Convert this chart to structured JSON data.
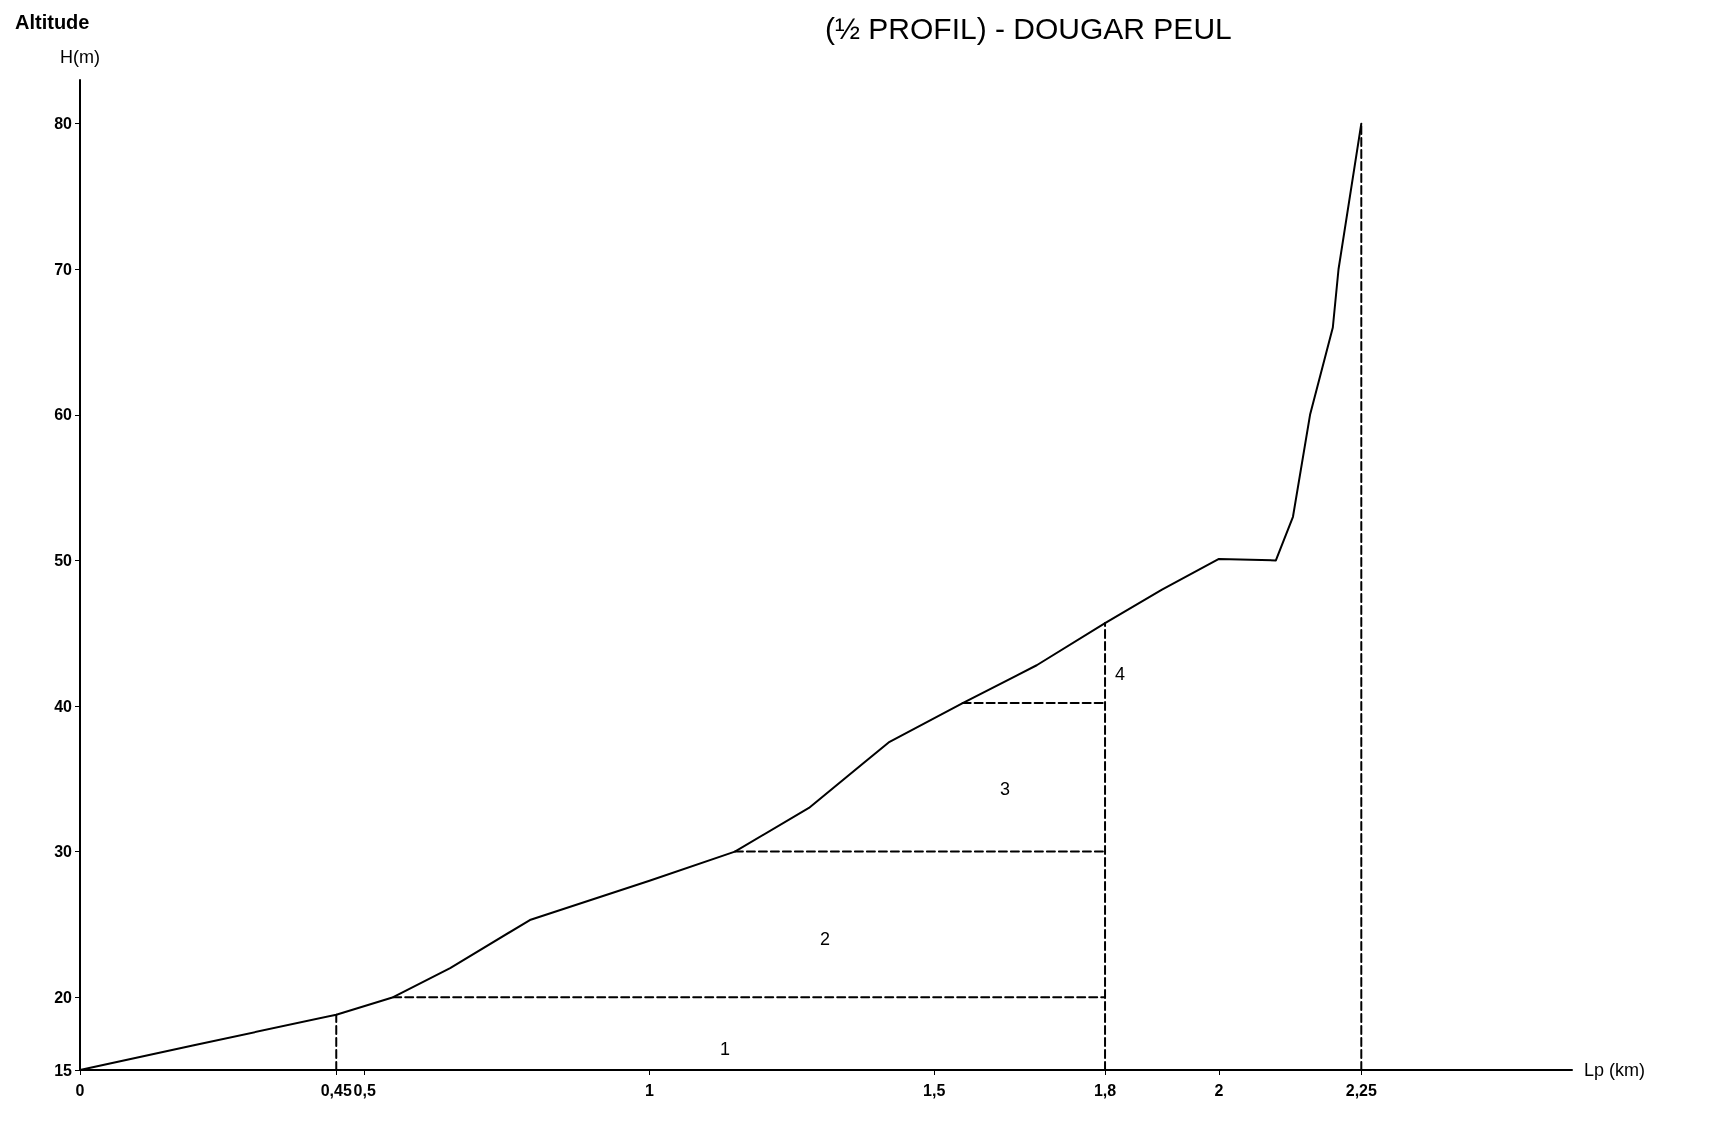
{
  "chart_data": {
    "type": "line",
    "title": "(½ PROFIL) - DOUGAR PEUL",
    "xlabel": "Lp (km)",
    "ylabel": "H(m)",
    "annotations": [
      "Altitude",
      "1",
      "2",
      "3",
      "4"
    ],
    "xlim": [
      0,
      2.62
    ],
    "ylim": [
      15,
      83
    ],
    "xticks": [
      0,
      {
        "value": 0.45,
        "label": "0,45"
      },
      {
        "value": 0.5,
        "label": "0,5"
      },
      1,
      {
        "value": 1.5,
        "label": "1,5"
      },
      {
        "value": 1.8,
        "label": "1,8"
      },
      2,
      {
        "value": 2.25,
        "label": "2,25"
      }
    ],
    "yticks": [
      15,
      20,
      30,
      40,
      50,
      60,
      70,
      80
    ],
    "grid": false,
    "marker": "none",
    "series": [
      {
        "color": "#000000",
        "line_style": "solid",
        "x": [
          0,
          0.2,
          0.45,
          0.55,
          0.65,
          0.79,
          1.0,
          1.15,
          1.28,
          1.42,
          1.55,
          1.68,
          1.8,
          1.9,
          2.0,
          2.1,
          2.13,
          2.16,
          2.2,
          2.21,
          2.25
        ],
        "values": [
          15,
          16.7,
          18.8,
          20,
          22,
          25.3,
          28,
          30,
          33,
          37.5,
          40.2,
          42.8,
          45.7,
          48,
          50.1,
          50,
          53,
          60,
          66,
          70,
          80
        ]
      },
      {
        "color": "#000000",
        "line_style": "dashed",
        "x": [
          0.45,
          0.45
        ],
        "values": [
          15,
          18.8
        ]
      },
      {
        "color": "#000000",
        "line_style": "dashed",
        "x": [
          0.55,
          1.8
        ],
        "values": [
          20,
          20
        ]
      },
      {
        "color": "#000000",
        "line_style": "dashed",
        "x": [
          1.15,
          1.8
        ],
        "values": [
          30,
          30
        ]
      },
      {
        "color": "#000000",
        "line_style": "dashed",
        "x": [
          1.55,
          1.8
        ],
        "values": [
          40.2,
          40.2
        ]
      },
      {
        "color": "#000000",
        "line_style": "dashed",
        "x": [
          1.8,
          1.8
        ],
        "values": [
          15,
          45.7
        ]
      },
      {
        "color": "#000000",
        "line_style": "dashed",
        "x": [
          2.25,
          2.25
        ],
        "values": [
          15,
          80
        ]
      }
    ]
  }
}
